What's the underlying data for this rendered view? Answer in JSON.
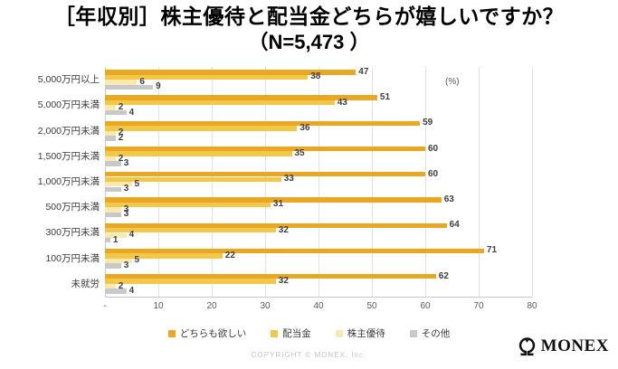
{
  "title": {
    "line1": "［年収別］株主優待と配当金どちらが嬉しいですか？",
    "line2": "（N=5,473 ）"
  },
  "chart_data": {
    "type": "bar",
    "orientation": "horizontal",
    "title": "［年収別］株主優待と配当金どちらが嬉しいですか？（N=5,473）",
    "categories": [
      "5,000万円以上",
      "5,000万円未満",
      "2,000万円未満",
      "1,500万円未満",
      "1,000万円未満",
      "500万円未満",
      "300万円未満",
      "100万円未満",
      "未就労"
    ],
    "series": [
      {
        "name": "どちらも欲しい",
        "color": "#EAA722",
        "values": [
          47,
          51,
          59,
          60,
          60,
          63,
          64,
          71,
          62
        ]
      },
      {
        "name": "配当金",
        "color": "#F2C84B",
        "values": [
          38,
          43,
          36,
          35,
          33,
          31,
          32,
          22,
          32
        ]
      },
      {
        "name": "株主優待",
        "color": "#F8E8B2",
        "values": [
          6,
          2,
          2,
          2,
          5,
          3,
          4,
          5,
          2
        ]
      },
      {
        "name": "その他",
        "color": "#C8C8C8",
        "values": [
          9,
          4,
          2,
          3,
          3,
          3,
          1,
          3,
          4
        ]
      }
    ],
    "x_axis": {
      "ticks": [
        "-",
        "10",
        "20",
        "30",
        "40",
        "50",
        "60",
        "70",
        "80"
      ],
      "min": 0,
      "max": 80,
      "unit_label": "(%)"
    },
    "grid": true,
    "legend_position": "bottom"
  },
  "footer": {
    "copyright": "COPYRIGHT © MONEX, Inc.",
    "logo_text": "MONEX"
  }
}
